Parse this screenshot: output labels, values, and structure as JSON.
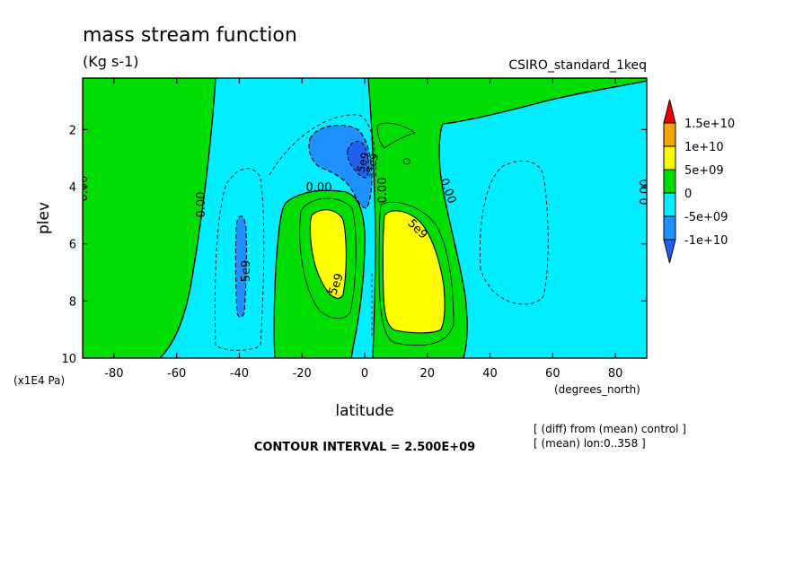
{
  "chart_data": {
    "type": "heatmap",
    "title": "mass stream function",
    "subtitle": "(Kg s-1)",
    "experiment_label": "CSIRO_standard_1keq",
    "xlabel": "latitude",
    "x_units": "(degrees_north)",
    "ylabel": "plev",
    "y_units": "(x1E4 Pa)",
    "xlim": [
      -90,
      90
    ],
    "ylim": [
      10,
      0.2
    ],
    "x_ticks": [
      -80,
      -60,
      -40,
      -20,
      0,
      20,
      40,
      60,
      80
    ],
    "y_ticks": [
      2,
      4,
      6,
      8,
      10
    ],
    "contour_interval_text": "CONTOUR INTERVAL = 2.500E+09",
    "notes": [
      "[ (diff) from (mean) control ]",
      "[ (mean) lon:0..358 ]"
    ],
    "contour_labels": [
      "0.00",
      "0.00",
      "0.00",
      "0.00",
      "0.00",
      "0.00",
      "5e9",
      "5e9",
      "5e9",
      "5e9",
      "-5e9"
    ],
    "colorbar": {
      "labels": [
        "1.5e+10",
        "1e+10",
        "5e+09",
        "0",
        "-5e+09",
        "-1e+10"
      ],
      "bins": [
        {
          "range": "> 1.5e+10",
          "color": "#ee0000"
        },
        {
          "range": "1e+10 to 1.5e+10",
          "color": "#f5a500"
        },
        {
          "range": "5e+09 to 1e+10",
          "color": "#ffff00"
        },
        {
          "range": "0 to 5e+09",
          "color": "#00dd00"
        },
        {
          "range": "-5e+09 to 0",
          "color": "#00eeff"
        },
        {
          "range": "-1e+10 to -5e+09",
          "color": "#1e90ff"
        },
        {
          "range": "< -1e+10",
          "color": "#2060ee"
        }
      ]
    },
    "regions": [
      {
        "sign": "positive",
        "level": "0 to 5e+09",
        "lat_range": [
          -90,
          -63
        ],
        "plev_range": [
          0.2,
          10
        ],
        "color": "#00dd00"
      },
      {
        "sign": "positive",
        "level": "5e+09 to 1e+10",
        "lat_range": [
          -17,
          -6
        ],
        "plev_range": [
          4.5,
          8.1
        ],
        "color": "#ffff00"
      },
      {
        "sign": "positive",
        "level": "5e+09 to 1e+10",
        "lat_range": [
          7,
          26
        ],
        "plev_range": [
          4.6,
          9.6
        ],
        "color": "#ffff00"
      },
      {
        "sign": "positive",
        "level": "0 to 5e+09",
        "lat_range": [
          -25,
          3
        ],
        "plev_range": [
          3.5,
          10
        ],
        "color": "#00dd00"
      },
      {
        "sign": "positive",
        "level": "0 to 5e+09",
        "lat_range": [
          4,
          31
        ],
        "plev_range": [
          0.2,
          10
        ],
        "color": "#00dd00"
      },
      {
        "sign": "negative",
        "level": "-1e+10 to -5e+09",
        "lat_range": [
          -18,
          3
        ],
        "plev_range": [
          1.8,
          4.6
        ],
        "color": "#1e90ff"
      },
      {
        "sign": "negative",
        "level": "-1e+10 to -5e+09",
        "lat_range": [
          -42,
          -39
        ],
        "plev_range": [
          4.8,
          8.6
        ],
        "color": "#1e90ff"
      },
      {
        "sign": "negative",
        "level": "< -1e+10",
        "lat_range": [
          -3,
          2
        ],
        "plev_range": [
          2.6,
          3.7
        ],
        "color": "#2060ee"
      }
    ]
  }
}
